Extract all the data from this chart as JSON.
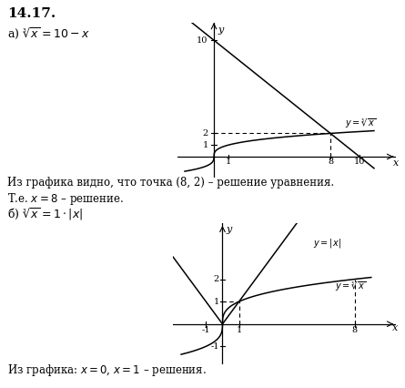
{
  "title": "14.17.",
  "part_a_label": "а) $\\sqrt[3]{x} = 10 - x$",
  "part_b_label": "б) $\\sqrt[3]{x} = 1 \\cdot |x|$",
  "text_a1": "Из графика видно, что точка (8, 2) – решение уравнения.",
  "text_a2": "Т.е. $x = 8$ – решение.",
  "text_b": "Из графика: $x = 0$, $x = 1$ – решения.",
  "bg_color": "#ffffff"
}
